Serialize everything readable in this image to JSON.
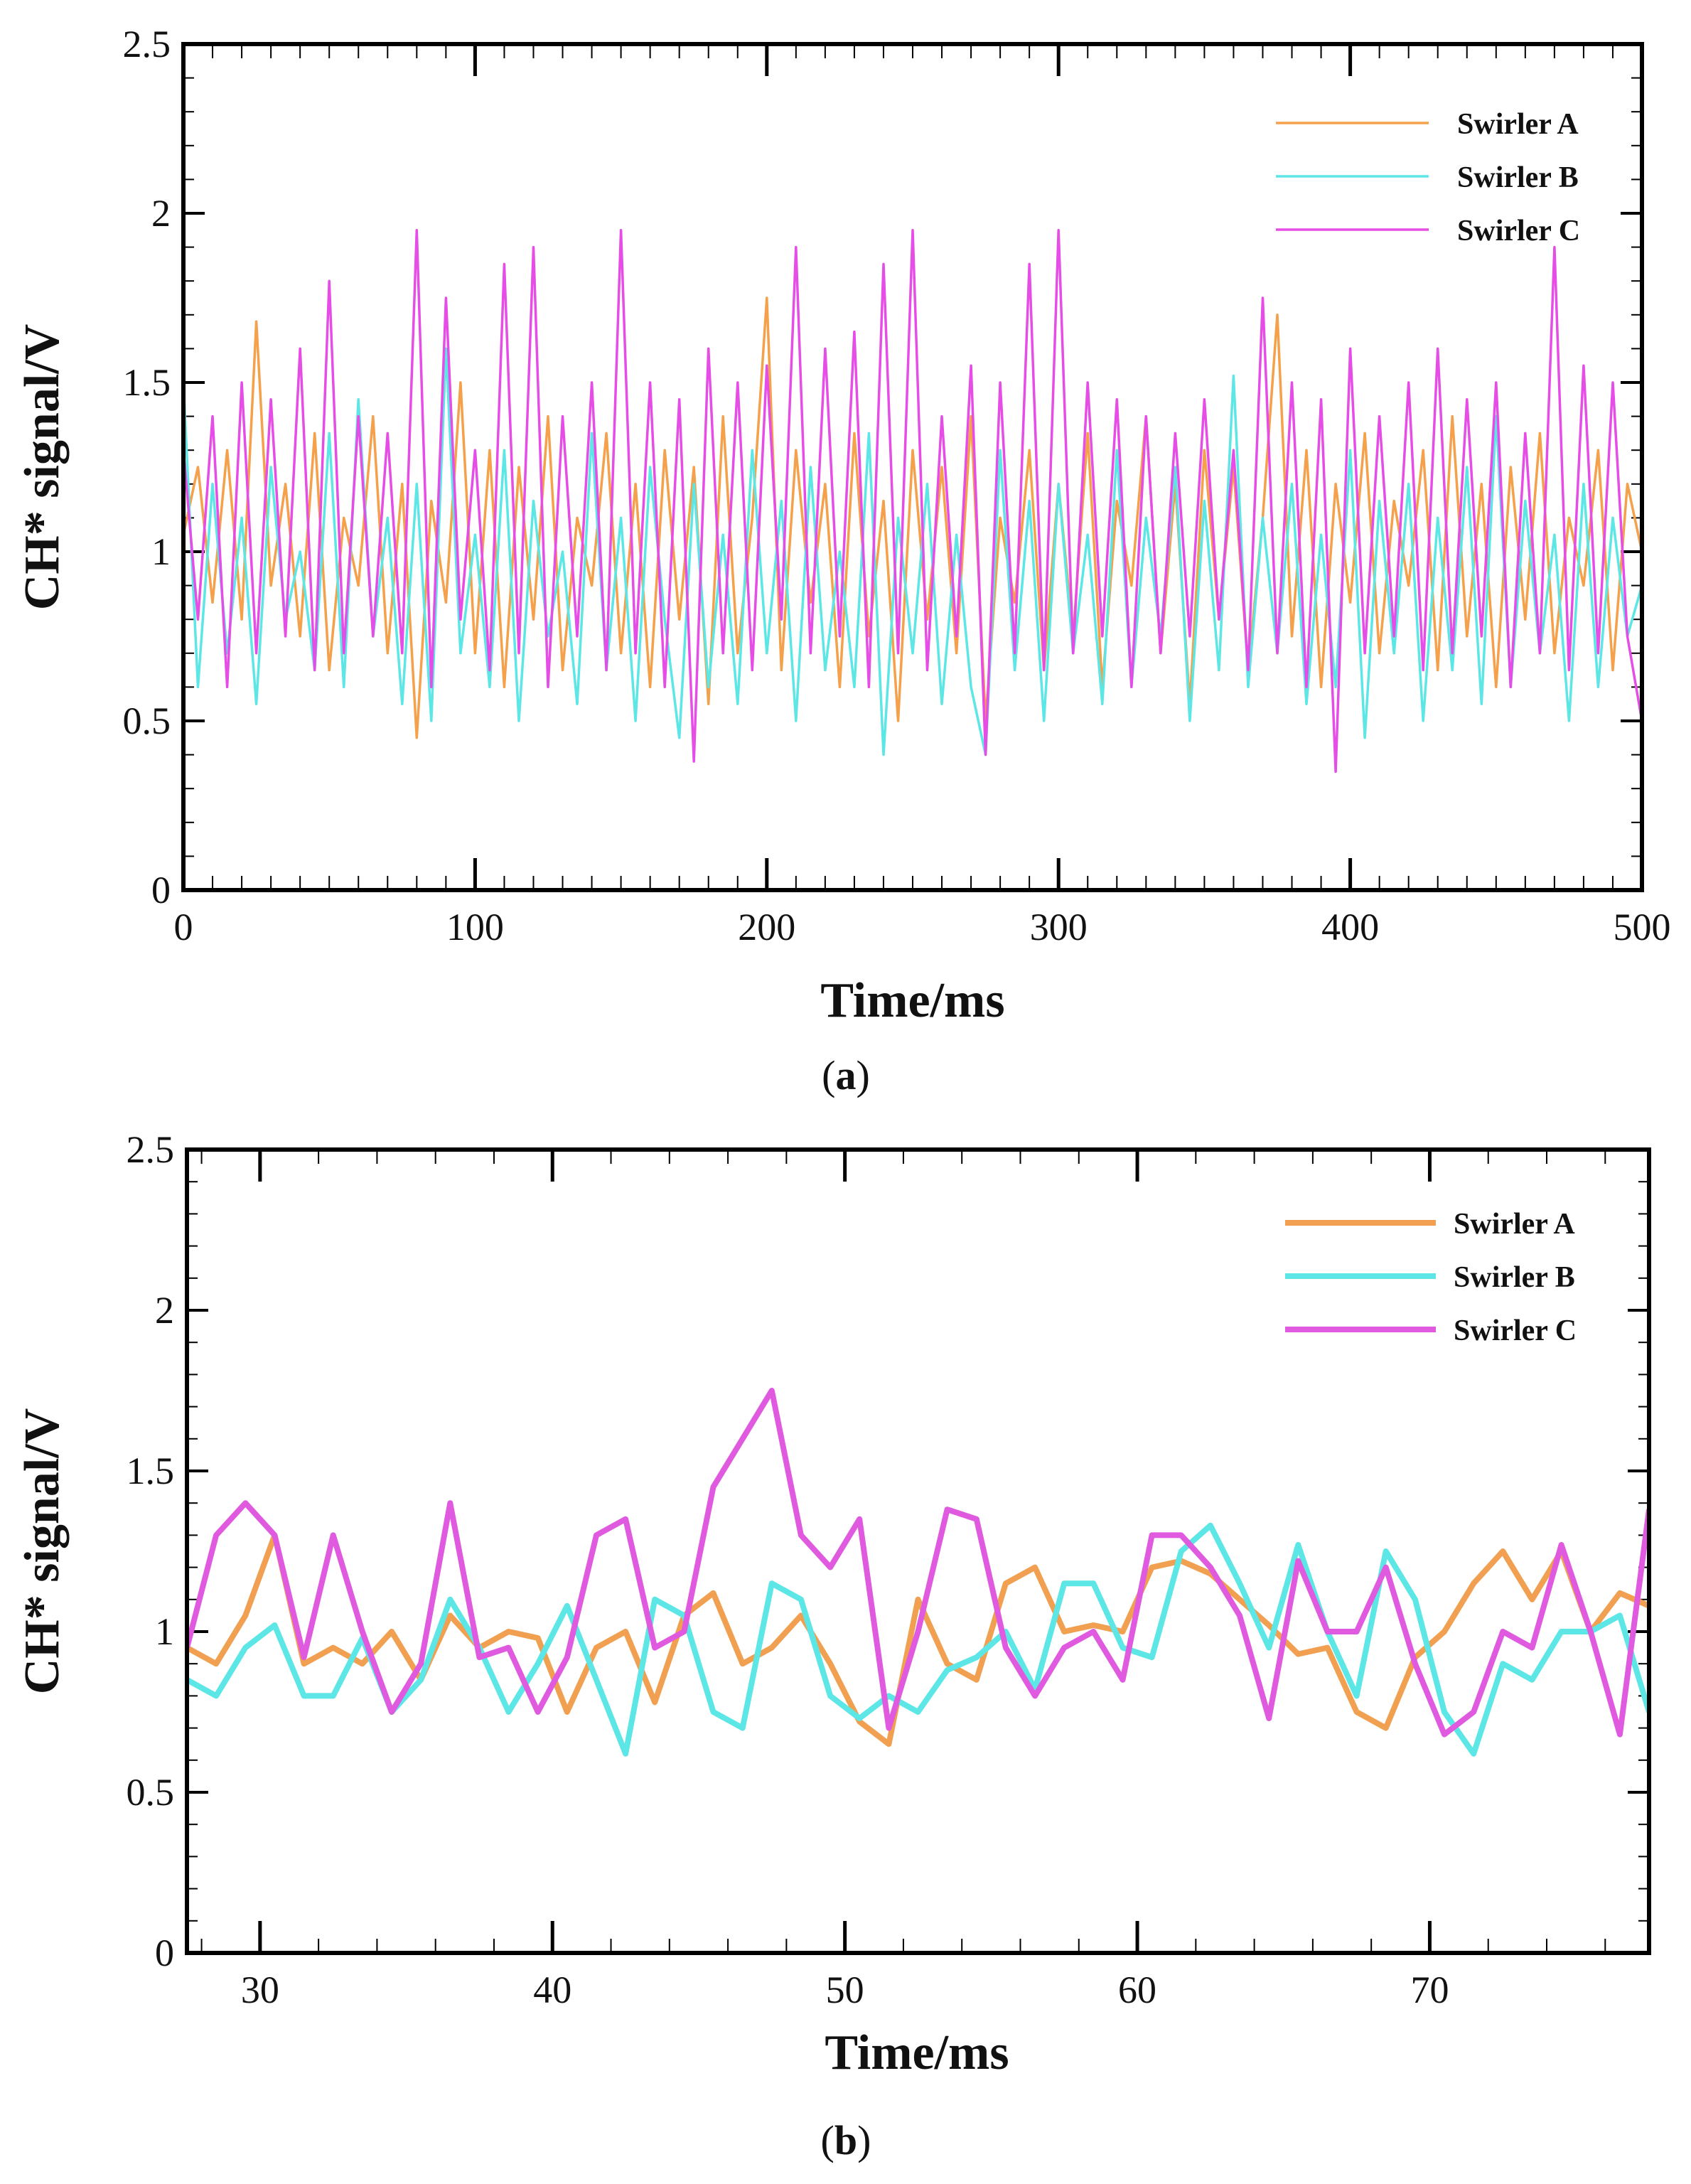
{
  "chart_data": [
    {
      "type": "line",
      "panel": "a",
      "caption_letter": "a",
      "xlabel": "Time/ms",
      "ylabel": "CH* signal/V",
      "xlim": [
        0,
        500
      ],
      "ylim": [
        0,
        2.5
      ],
      "xticks": [
        0,
        100,
        200,
        300,
        400,
        500
      ],
      "xtick_labels": [
        "0",
        "100",
        "200",
        "300",
        "400",
        "500"
      ],
      "yticks": [
        0,
        0.5,
        1,
        1.5,
        2,
        2.5
      ],
      "ytick_labels": [
        "0",
        "0.5",
        "1",
        "1.5",
        "2",
        "2.5"
      ],
      "legend_position": "top-right",
      "series": [
        {
          "name": "Swirler A",
          "color": "#f5a04a",
          "x": [
            0,
            5,
            10,
            15,
            20,
            25,
            30,
            35,
            40,
            45,
            50,
            55,
            60,
            65,
            70,
            75,
            80,
            85,
            90,
            95,
            100,
            105,
            110,
            115,
            120,
            125,
            130,
            135,
            140,
            145,
            150,
            155,
            160,
            165,
            170,
            175,
            180,
            185,
            190,
            195,
            200,
            205,
            210,
            215,
            220,
            225,
            230,
            235,
            240,
            245,
            250,
            255,
            260,
            265,
            270,
            275,
            280,
            285,
            290,
            295,
            300,
            305,
            310,
            315,
            320,
            325,
            330,
            335,
            340,
            345,
            350,
            355,
            360,
            365,
            370,
            375,
            380,
            385,
            390,
            395,
            400,
            405,
            410,
            415,
            420,
            425,
            430,
            435,
            440,
            445,
            450,
            455,
            460,
            465,
            470,
            475,
            480,
            485,
            490,
            495,
            500
          ],
          "values": [
            1.05,
            1.25,
            0.85,
            1.3,
            0.8,
            1.68,
            0.9,
            1.2,
            0.75,
            1.35,
            0.65,
            1.1,
            0.9,
            1.4,
            0.7,
            1.2,
            0.45,
            1.15,
            0.85,
            1.5,
            0.7,
            1.3,
            0.6,
            1.25,
            0.8,
            1.4,
            0.65,
            1.1,
            0.9,
            1.35,
            0.7,
            1.2,
            0.6,
            1.3,
            0.8,
            1.25,
            0.55,
            1.4,
            0.7,
            1.1,
            1.75,
            0.65,
            1.3,
            0.85,
            1.2,
            0.6,
            1.35,
            0.75,
            1.15,
            0.5,
            1.3,
            0.8,
            1.25,
            0.7,
            1.4,
            0.5,
            1.1,
            0.85,
            1.3,
            0.65,
            1.2,
            0.75,
            1.35,
            0.6,
            1.15,
            0.9,
            1.4,
            0.7,
            1.2,
            0.55,
            1.3,
            0.8,
            1.25,
            0.65,
            1.1,
            1.7,
            0.75,
            1.3,
            0.6,
            1.2,
            0.85,
            1.35,
            0.7,
            1.15,
            0.9,
            1.3,
            0.65,
            1.4,
            0.75,
            1.2,
            0.6,
            1.25,
            0.8,
            1.35,
            0.7,
            1.1,
            0.9,
            1.3,
            0.65,
            1.2,
            1.0
          ]
        },
        {
          "name": "Swirler B",
          "color": "#5ce6e6",
          "x": [
            0,
            5,
            10,
            15,
            20,
            25,
            30,
            35,
            40,
            45,
            50,
            55,
            60,
            65,
            70,
            75,
            80,
            85,
            90,
            95,
            100,
            105,
            110,
            115,
            120,
            125,
            130,
            135,
            140,
            145,
            150,
            155,
            160,
            165,
            170,
            175,
            180,
            185,
            190,
            195,
            200,
            205,
            210,
            215,
            220,
            225,
            230,
            235,
            240,
            245,
            250,
            255,
            260,
            265,
            270,
            275,
            280,
            285,
            290,
            295,
            300,
            305,
            310,
            315,
            320,
            325,
            330,
            335,
            340,
            345,
            350,
            355,
            360,
            365,
            370,
            375,
            380,
            385,
            390,
            395,
            400,
            405,
            410,
            415,
            420,
            425,
            430,
            435,
            440,
            445,
            450,
            455,
            460,
            465,
            470,
            475,
            480,
            485,
            490,
            495,
            500
          ],
          "values": [
            1.5,
            0.6,
            1.2,
            0.7,
            1.1,
            0.55,
            1.25,
            0.8,
            1.0,
            0.65,
            1.35,
            0.6,
            1.45,
            0.75,
            1.1,
            0.55,
            1.2,
            0.5,
            1.6,
            0.7,
            1.05,
            0.6,
            1.3,
            0.5,
            1.15,
            0.75,
            1.0,
            0.55,
            1.35,
            0.65,
            1.1,
            0.5,
            1.25,
            0.8,
            0.45,
            1.2,
            0.6,
            1.05,
            0.55,
            1.3,
            0.7,
            1.15,
            0.5,
            1.25,
            0.65,
            1.0,
            0.6,
            1.35,
            0.4,
            1.1,
            0.7,
            1.2,
            0.55,
            1.05,
            0.6,
            0.4,
            1.3,
            0.65,
            1.15,
            0.5,
            1.2,
            0.7,
            1.05,
            0.55,
            1.3,
            0.6,
            1.1,
            0.75,
            1.25,
            0.5,
            1.15,
            0.65,
            1.52,
            0.6,
            1.1,
            0.7,
            1.2,
            0.55,
            1.05,
            0.6,
            1.3,
            0.45,
            1.15,
            0.7,
            1.2,
            0.5,
            1.1,
            0.65,
            1.25,
            0.55,
            1.4,
            0.6,
            1.15,
            0.7,
            1.05,
            0.5,
            1.2,
            0.6,
            1.1,
            0.75,
            0.9
          ]
        },
        {
          "name": "Swirler C",
          "color": "#e64ce6",
          "x": [
            0,
            5,
            10,
            15,
            20,
            25,
            30,
            35,
            40,
            45,
            50,
            55,
            60,
            65,
            70,
            75,
            80,
            85,
            90,
            95,
            100,
            105,
            110,
            115,
            120,
            125,
            130,
            135,
            140,
            145,
            150,
            155,
            160,
            165,
            170,
            175,
            180,
            185,
            190,
            195,
            200,
            205,
            210,
            215,
            220,
            225,
            230,
            235,
            240,
            245,
            250,
            255,
            260,
            265,
            270,
            275,
            280,
            285,
            290,
            295,
            300,
            305,
            310,
            315,
            320,
            325,
            330,
            335,
            340,
            345,
            350,
            355,
            360,
            365,
            370,
            375,
            380,
            385,
            390,
            395,
            400,
            405,
            410,
            415,
            420,
            425,
            430,
            435,
            440,
            445,
            450,
            455,
            460,
            465,
            470,
            475,
            480,
            485,
            490,
            495,
            500
          ],
          "values": [
            1.3,
            0.8,
            1.4,
            0.6,
            1.5,
            0.7,
            1.45,
            0.75,
            1.6,
            0.65,
            1.8,
            0.7,
            1.4,
            0.75,
            1.35,
            0.7,
            1.95,
            0.6,
            1.75,
            0.8,
            1.3,
            0.65,
            1.85,
            0.7,
            1.9,
            0.6,
            1.4,
            0.75,
            1.5,
            0.65,
            1.95,
            0.7,
            1.5,
            0.6,
            1.45,
            0.38,
            1.6,
            0.7,
            1.5,
            0.65,
            1.55,
            0.8,
            1.9,
            0.7,
            1.6,
            0.75,
            1.65,
            0.6,
            1.85,
            0.7,
            1.95,
            0.65,
            1.4,
            0.75,
            1.55,
            0.4,
            1.5,
            0.7,
            1.85,
            0.65,
            1.95,
            0.7,
            1.5,
            0.75,
            1.45,
            0.6,
            1.4,
            0.7,
            1.35,
            0.75,
            1.45,
            0.8,
            1.3,
            0.65,
            1.75,
            0.7,
            1.5,
            0.6,
            1.45,
            0.35,
            1.6,
            0.7,
            1.4,
            0.75,
            1.5,
            0.65,
            1.6,
            0.7,
            1.45,
            0.75,
            1.5,
            0.6,
            1.35,
            0.7,
            1.9,
            0.65,
            1.55,
            0.7,
            1.5,
            0.75,
            0.5
          ]
        }
      ]
    },
    {
      "type": "line",
      "panel": "b",
      "caption_letter": "b",
      "xlabel": "Time/ms",
      "ylabel": "CH* signal/V",
      "xlim": [
        27.5,
        77.5
      ],
      "ylim": [
        0,
        2.5
      ],
      "xticks": [
        30,
        40,
        50,
        60,
        70
      ],
      "xtick_labels": [
        "30",
        "40",
        "50",
        "60",
        "70"
      ],
      "yticks": [
        0,
        0.5,
        1,
        1.5,
        2,
        2.5
      ],
      "ytick_labels": [
        "0",
        "0.5",
        "1",
        "1.5",
        "2",
        "2.5"
      ],
      "legend_position": "top-right",
      "series": [
        {
          "name": "Swirler A",
          "color": "#f0a050",
          "x": [
            27.5,
            28.5,
            29.5,
            30.5,
            31.5,
            32.5,
            33.5,
            34.5,
            35.5,
            36.5,
            37.5,
            38.5,
            39.5,
            40.5,
            41.5,
            42.5,
            43.5,
            44.5,
            45.5,
            46.5,
            47.5,
            48.5,
            49.5,
            50.5,
            51.5,
            52.5,
            53.5,
            54.5,
            55.5,
            56.5,
            57.5,
            58.5,
            59.5,
            60.5,
            61.5,
            62.5,
            63.5,
            64.5,
            65.5,
            66.5,
            67.5,
            68.5,
            69.5,
            70.5,
            71.5,
            72.5,
            73.5,
            74.5,
            75.5,
            76.5,
            77.5
          ],
          "values": [
            0.95,
            0.9,
            1.05,
            1.3,
            0.9,
            0.95,
            0.9,
            1.0,
            0.85,
            1.05,
            0.95,
            1.0,
            0.98,
            0.75,
            0.95,
            1.0,
            0.78,
            1.05,
            1.12,
            0.9,
            0.95,
            1.05,
            0.9,
            0.72,
            0.65,
            1.1,
            0.9,
            0.85,
            1.15,
            1.2,
            1.0,
            1.02,
            1.0,
            1.2,
            1.22,
            1.18,
            1.1,
            1.02,
            0.93,
            0.95,
            0.75,
            0.7,
            0.92,
            1.0,
            1.15,
            1.25,
            1.1,
            1.25,
            1.0,
            1.12,
            1.08
          ]
        },
        {
          "name": "Swirler B",
          "color": "#5ce6e6",
          "x": [
            27.5,
            28.5,
            29.5,
            30.5,
            31.5,
            32.5,
            33.5,
            34.5,
            35.5,
            36.5,
            37.5,
            38.5,
            39.5,
            40.5,
            41.5,
            42.5,
            43.5,
            44.5,
            45.5,
            46.5,
            47.5,
            48.5,
            49.5,
            50.5,
            51.5,
            52.5,
            53.5,
            54.5,
            55.5,
            56.5,
            57.5,
            58.5,
            59.5,
            60.5,
            61.5,
            62.5,
            63.5,
            64.5,
            65.5,
            66.5,
            67.5,
            68.5,
            69.5,
            70.5,
            71.5,
            72.5,
            73.5,
            74.5,
            75.5,
            76.5,
            77.5
          ],
          "values": [
            0.85,
            0.8,
            0.95,
            1.02,
            0.8,
            0.8,
            0.98,
            0.75,
            0.85,
            1.1,
            0.95,
            0.75,
            0.9,
            1.08,
            0.85,
            0.62,
            1.1,
            1.05,
            0.75,
            0.7,
            1.15,
            1.1,
            0.8,
            0.73,
            0.8,
            0.75,
            0.88,
            0.92,
            1.0,
            0.82,
            1.15,
            1.15,
            0.95,
            0.92,
            1.25,
            1.33,
            1.15,
            0.95,
            1.27,
            1.0,
            0.8,
            1.25,
            1.1,
            0.75,
            0.62,
            0.9,
            0.85,
            1.0,
            1.0,
            1.05,
            0.75
          ]
        },
        {
          "name": "Swirler C",
          "color": "#e05ae0",
          "x": [
            27.5,
            28.5,
            29.5,
            30.5,
            31.5,
            32.5,
            33.5,
            34.5,
            35.5,
            36.5,
            37.5,
            38.5,
            39.5,
            40.5,
            41.5,
            42.5,
            43.5,
            44.5,
            45.5,
            46.5,
            47.5,
            48.5,
            49.5,
            50.5,
            51.5,
            52.5,
            53.5,
            54.5,
            55.5,
            56.5,
            57.5,
            58.5,
            59.5,
            60.5,
            61.5,
            62.5,
            63.5,
            64.5,
            65.5,
            66.5,
            67.5,
            68.5,
            69.5,
            70.5,
            71.5,
            72.5,
            73.5,
            74.5,
            75.5,
            76.5,
            77.5
          ],
          "values": [
            0.95,
            1.3,
            1.4,
            1.3,
            0.92,
            1.3,
            1.0,
            0.75,
            0.9,
            1.4,
            0.92,
            0.95,
            0.75,
            0.92,
            1.3,
            1.35,
            0.95,
            1.0,
            1.45,
            1.6,
            1.75,
            1.3,
            1.2,
            1.35,
            0.7,
            1.0,
            1.38,
            1.35,
            0.95,
            0.8,
            0.95,
            1.0,
            0.85,
            1.3,
            1.3,
            1.2,
            1.05,
            0.73,
            1.22,
            1.0,
            1.0,
            1.2,
            0.9,
            0.68,
            0.75,
            1.0,
            0.95,
            1.27,
            1.0,
            0.68,
            1.38
          ]
        }
      ]
    }
  ]
}
